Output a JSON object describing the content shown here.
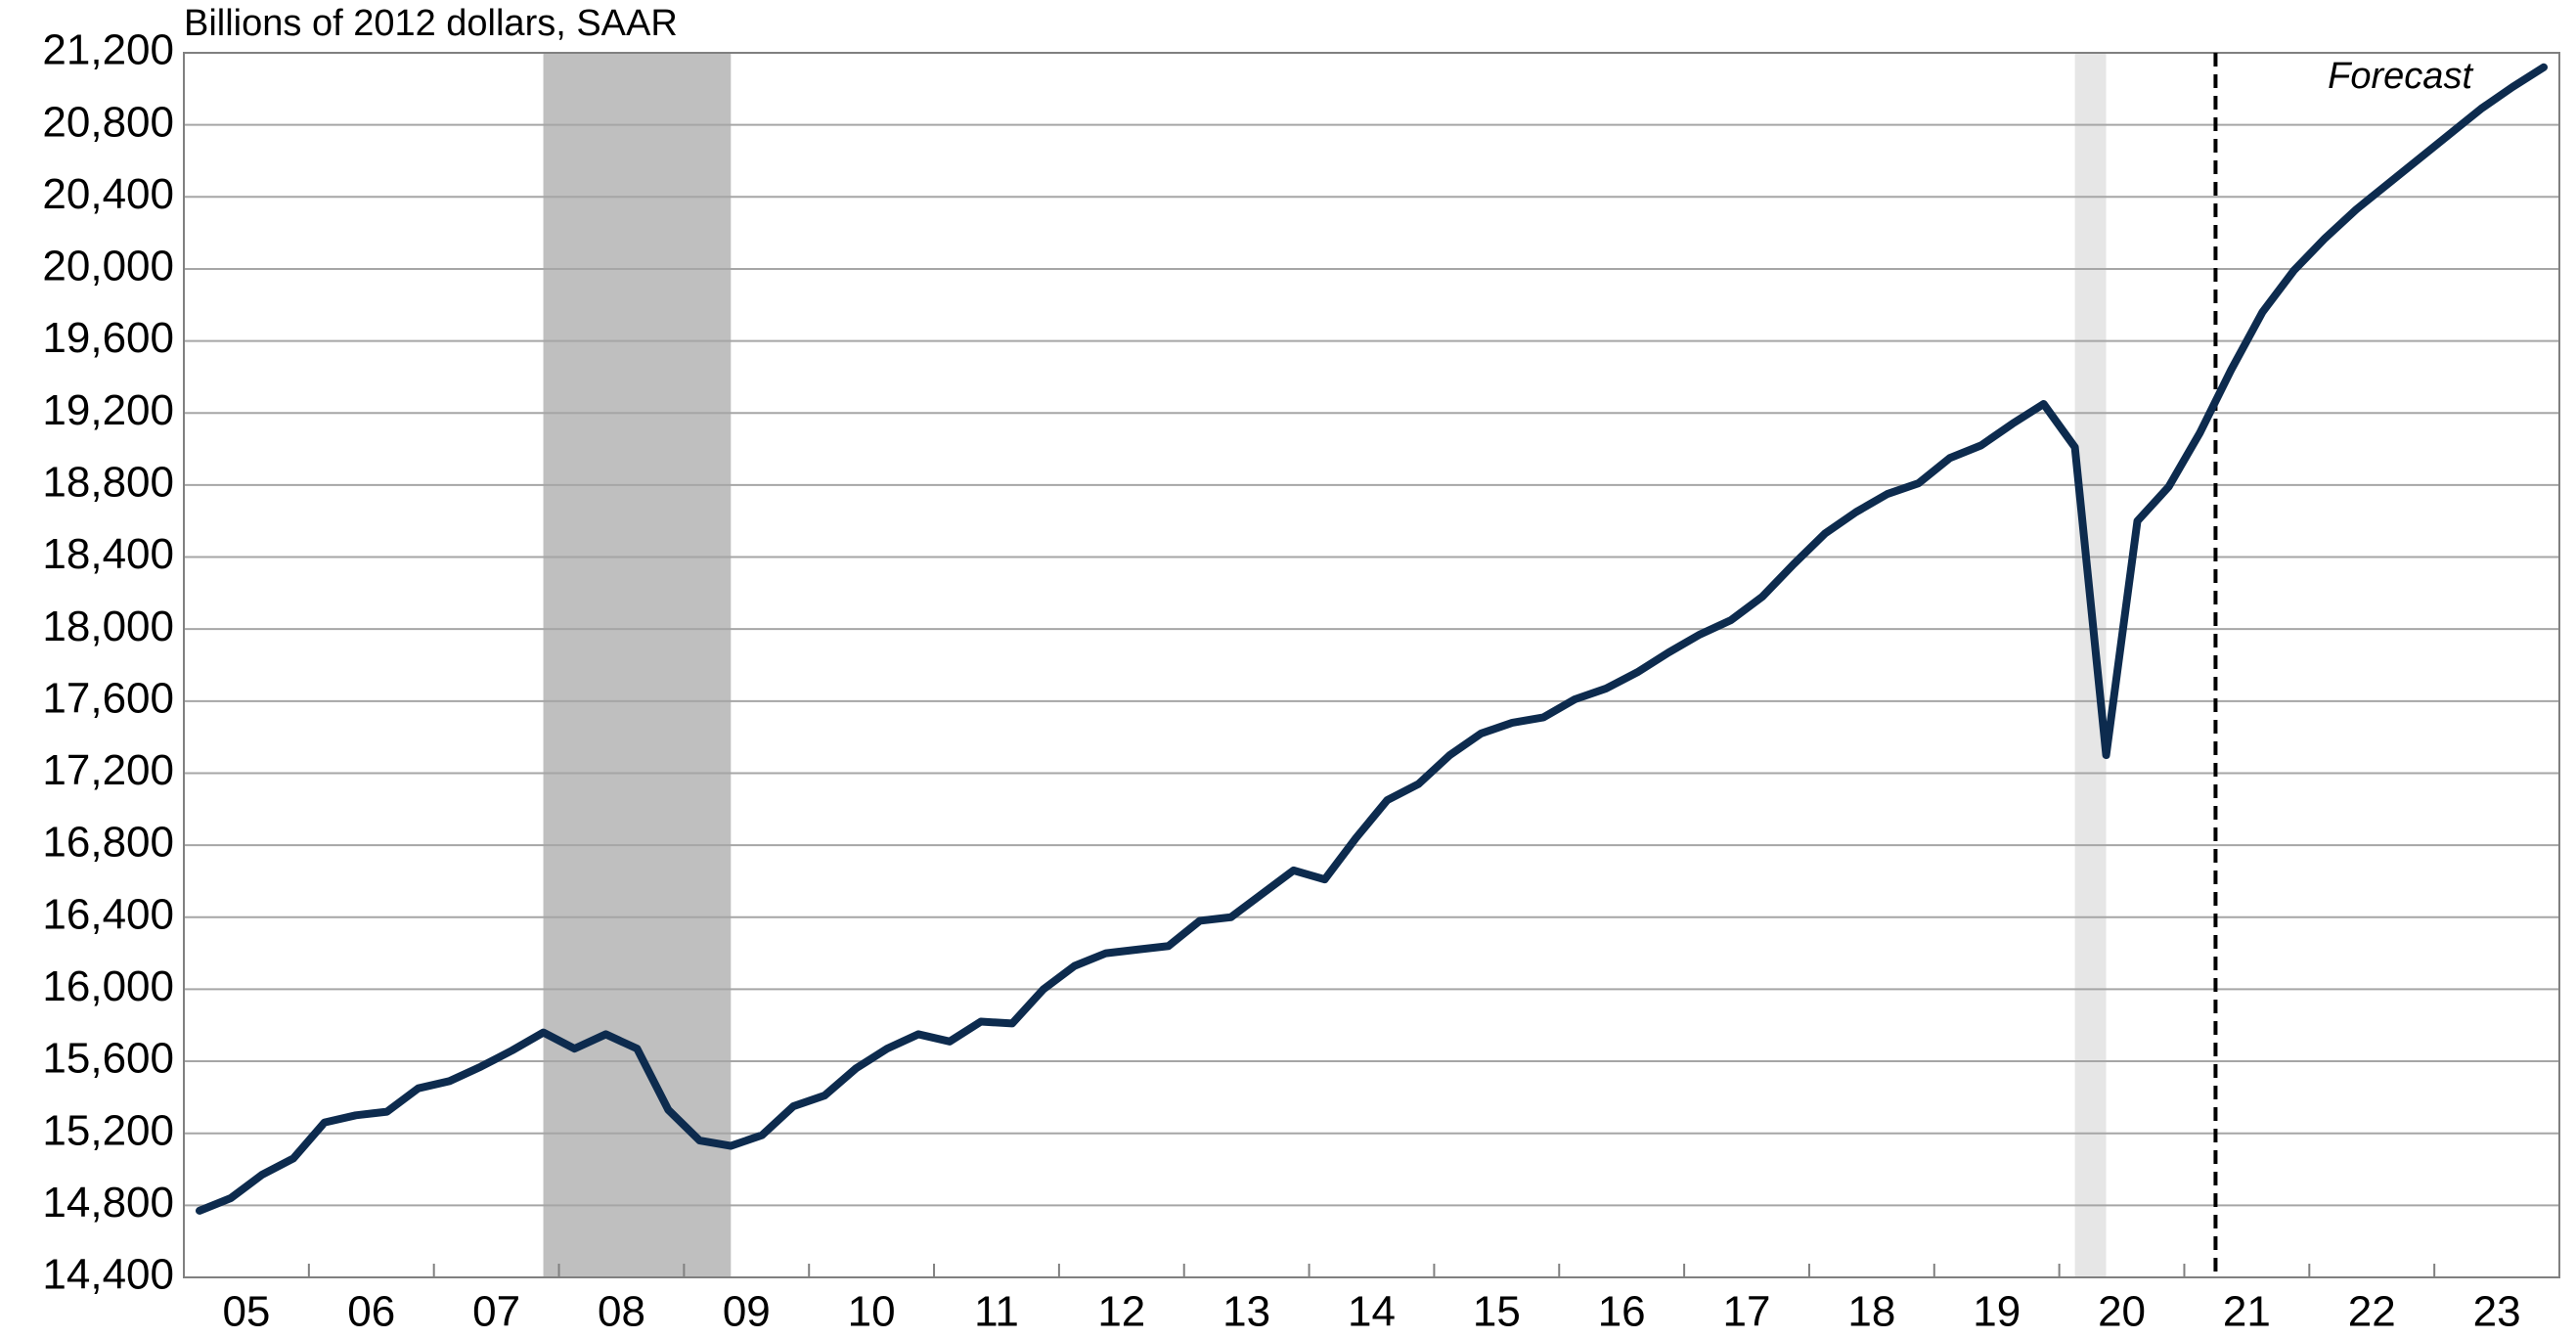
{
  "chart_data": {
    "type": "line",
    "y_axis_label": "Billions of 2012 dollars, SAAR",
    "annotation": "Forecast",
    "x": [
      2005.125,
      2005.375,
      2005.625,
      2005.875,
      2006.125,
      2006.375,
      2006.625,
      2006.875,
      2007.125,
      2007.375,
      2007.625,
      2007.875,
      2008.125,
      2008.375,
      2008.625,
      2008.875,
      2009.125,
      2009.375,
      2009.625,
      2009.875,
      2010.125,
      2010.375,
      2010.625,
      2010.875,
      2011.125,
      2011.375,
      2011.625,
      2011.875,
      2012.125,
      2012.375,
      2012.625,
      2012.875,
      2013.125,
      2013.375,
      2013.625,
      2013.875,
      2014.125,
      2014.375,
      2014.625,
      2014.875,
      2015.125,
      2015.375,
      2015.625,
      2015.875,
      2016.125,
      2016.375,
      2016.625,
      2016.875,
      2017.125,
      2017.375,
      2017.625,
      2017.875,
      2018.125,
      2018.375,
      2018.625,
      2018.875,
      2019.125,
      2019.375,
      2019.625,
      2019.875,
      2020.125,
      2020.375,
      2020.625,
      2020.875,
      2021.125,
      2021.375,
      2021.625,
      2021.875,
      2022.125,
      2022.375,
      2022.625,
      2022.875,
      2023.125,
      2023.375,
      2023.625,
      2023.875
    ],
    "series": [
      {
        "color": "#0d2b4e",
        "values": [
          14770,
          14840,
          14970,
          15060,
          15260,
          15300,
          15320,
          15450,
          15490,
          15570,
          15660,
          15760,
          15670,
          15750,
          15670,
          15330,
          15160,
          15130,
          15190,
          15350,
          15410,
          15560,
          15670,
          15750,
          15710,
          15820,
          15810,
          16000,
          16130,
          16200,
          16220,
          16240,
          16380,
          16400,
          16530,
          16660,
          16610,
          16840,
          17050,
          17140,
          17300,
          17420,
          17480,
          17510,
          17610,
          17670,
          17760,
          17870,
          17970,
          18050,
          18180,
          18360,
          18530,
          18650,
          18750,
          18810,
          18950,
          19020,
          19140,
          19250,
          19010,
          17300,
          18600,
          18790,
          19090,
          19440,
          19760,
          19990,
          20170,
          20330,
          20470,
          20610,
          20750,
          20890,
          21010,
          21120
        ]
      }
    ],
    "xlim": [
      2005,
      2024
    ],
    "xticks": [
      {
        "value": 2005.5,
        "label": "05"
      },
      {
        "value": 2006.5,
        "label": "06"
      },
      {
        "value": 2007.5,
        "label": "07"
      },
      {
        "value": 2008.5,
        "label": "08"
      },
      {
        "value": 2009.5,
        "label": "09"
      },
      {
        "value": 2010.5,
        "label": "10"
      },
      {
        "value": 2011.5,
        "label": "11"
      },
      {
        "value": 2012.5,
        "label": "12"
      },
      {
        "value": 2013.5,
        "label": "13"
      },
      {
        "value": 2014.5,
        "label": "14"
      },
      {
        "value": 2015.5,
        "label": "15"
      },
      {
        "value": 2016.5,
        "label": "16"
      },
      {
        "value": 2017.5,
        "label": "17"
      },
      {
        "value": 2018.5,
        "label": "18"
      },
      {
        "value": 2019.5,
        "label": "19"
      },
      {
        "value": 2020.5,
        "label": "20"
      },
      {
        "value": 2021.5,
        "label": "21"
      },
      {
        "value": 2022.5,
        "label": "22"
      },
      {
        "value": 2023.5,
        "label": "23"
      }
    ],
    "ylim": [
      14400,
      21200
    ],
    "yticks": [
      {
        "value": 14400,
        "label": "14,400"
      },
      {
        "value": 14800,
        "label": "14,800"
      },
      {
        "value": 15200,
        "label": "15,200"
      },
      {
        "value": 15600,
        "label": "15,600"
      },
      {
        "value": 16000,
        "label": "16,000"
      },
      {
        "value": 16400,
        "label": "16,400"
      },
      {
        "value": 16800,
        "label": "16,800"
      },
      {
        "value": 17200,
        "label": "17,200"
      },
      {
        "value": 17600,
        "label": "17,600"
      },
      {
        "value": 18000,
        "label": "18,000"
      },
      {
        "value": 18400,
        "label": "18,400"
      },
      {
        "value": 18800,
        "label": "18,800"
      },
      {
        "value": 19200,
        "label": "19,200"
      },
      {
        "value": 19600,
        "label": "19,600"
      },
      {
        "value": 20000,
        "label": "20,000"
      },
      {
        "value": 20400,
        "label": "20,400"
      },
      {
        "value": 20800,
        "label": "20,800"
      },
      {
        "value": 21200,
        "label": "21,200"
      }
    ],
    "grid": true,
    "shaded_regions": [
      {
        "x": [
          2007.875,
          2009.375
        ],
        "color": "#bfbfbf"
      },
      {
        "x": [
          2020.125,
          2020.375
        ],
        "color": "#e6e6e6"
      }
    ],
    "vlines": [
      {
        "x": 2021.25,
        "style": "dashed",
        "color": "#000000"
      }
    ]
  }
}
